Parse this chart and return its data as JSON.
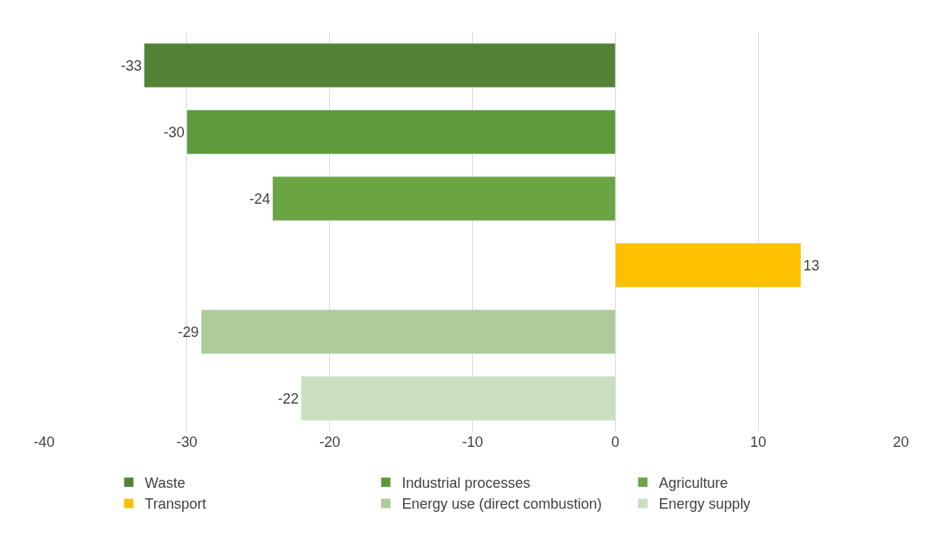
{
  "chart_data": {
    "type": "bar",
    "orientation": "horizontal",
    "categories": [
      null,
      null,
      null,
      null,
      null,
      null
    ],
    "series": [
      {
        "name": "Waste",
        "color": "#548235",
        "values": [
          -33,
          null,
          null,
          null,
          null,
          null
        ]
      },
      {
        "name": "Industrial processes",
        "color": "#5e9a3a",
        "values": [
          null,
          -30,
          null,
          null,
          null,
          null
        ]
      },
      {
        "name": "Agriculture",
        "color": "#6aa443",
        "values": [
          null,
          null,
          -24,
          null,
          null,
          null
        ]
      },
      {
        "name": "Transport",
        "color": "#ffc000",
        "values": [
          null,
          null,
          null,
          13,
          null,
          null
        ]
      },
      {
        "name": "Energy use (direct combustion)",
        "color": "#aecb9b",
        "values": [
          null,
          null,
          null,
          null,
          -29,
          null
        ]
      },
      {
        "name": "Energy supply",
        "color": "#cadfc0",
        "values": [
          null,
          null,
          null,
          null,
          null,
          -22
        ]
      }
    ],
    "xlim": [
      -40,
      20
    ],
    "xticks": [
      -40,
      -30,
      -20,
      -10,
      0,
      10,
      20
    ],
    "grid": "x",
    "data_labels": true,
    "legend": "bottom"
  }
}
